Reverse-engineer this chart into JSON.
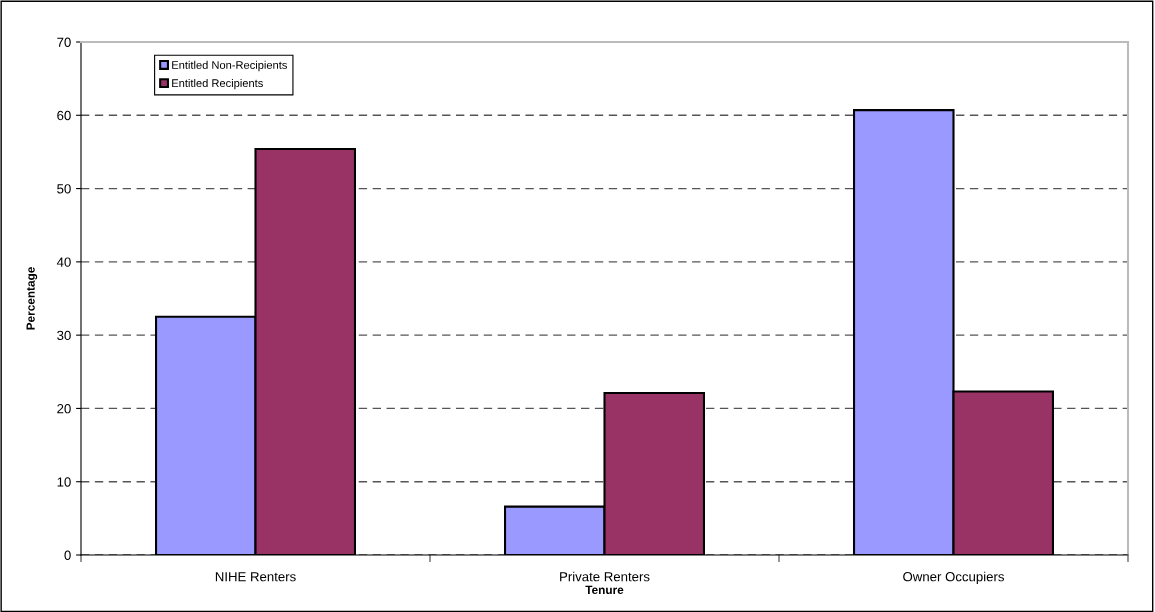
{
  "chart_data": {
    "type": "bar",
    "xlabel": "Tenure",
    "ylabel": "Percentage",
    "categories": [
      "NIHE Renters",
      "Private Renters",
      "Owner Occupiers"
    ],
    "series": [
      {
        "name": "Entitled Non-Recipients",
        "color": "#9999ff",
        "values": [
          32.5,
          6.6,
          60.7
        ]
      },
      {
        "name": "Entitled Recipients",
        "color": "#993366",
        "values": [
          55.4,
          22.1,
          22.3
        ]
      }
    ],
    "ylim": [
      0,
      70
    ],
    "yticks": [
      0,
      10,
      20,
      30,
      40,
      50,
      60,
      70
    ],
    "grid": "y",
    "line_style": "dashed",
    "legend": "top left"
  }
}
